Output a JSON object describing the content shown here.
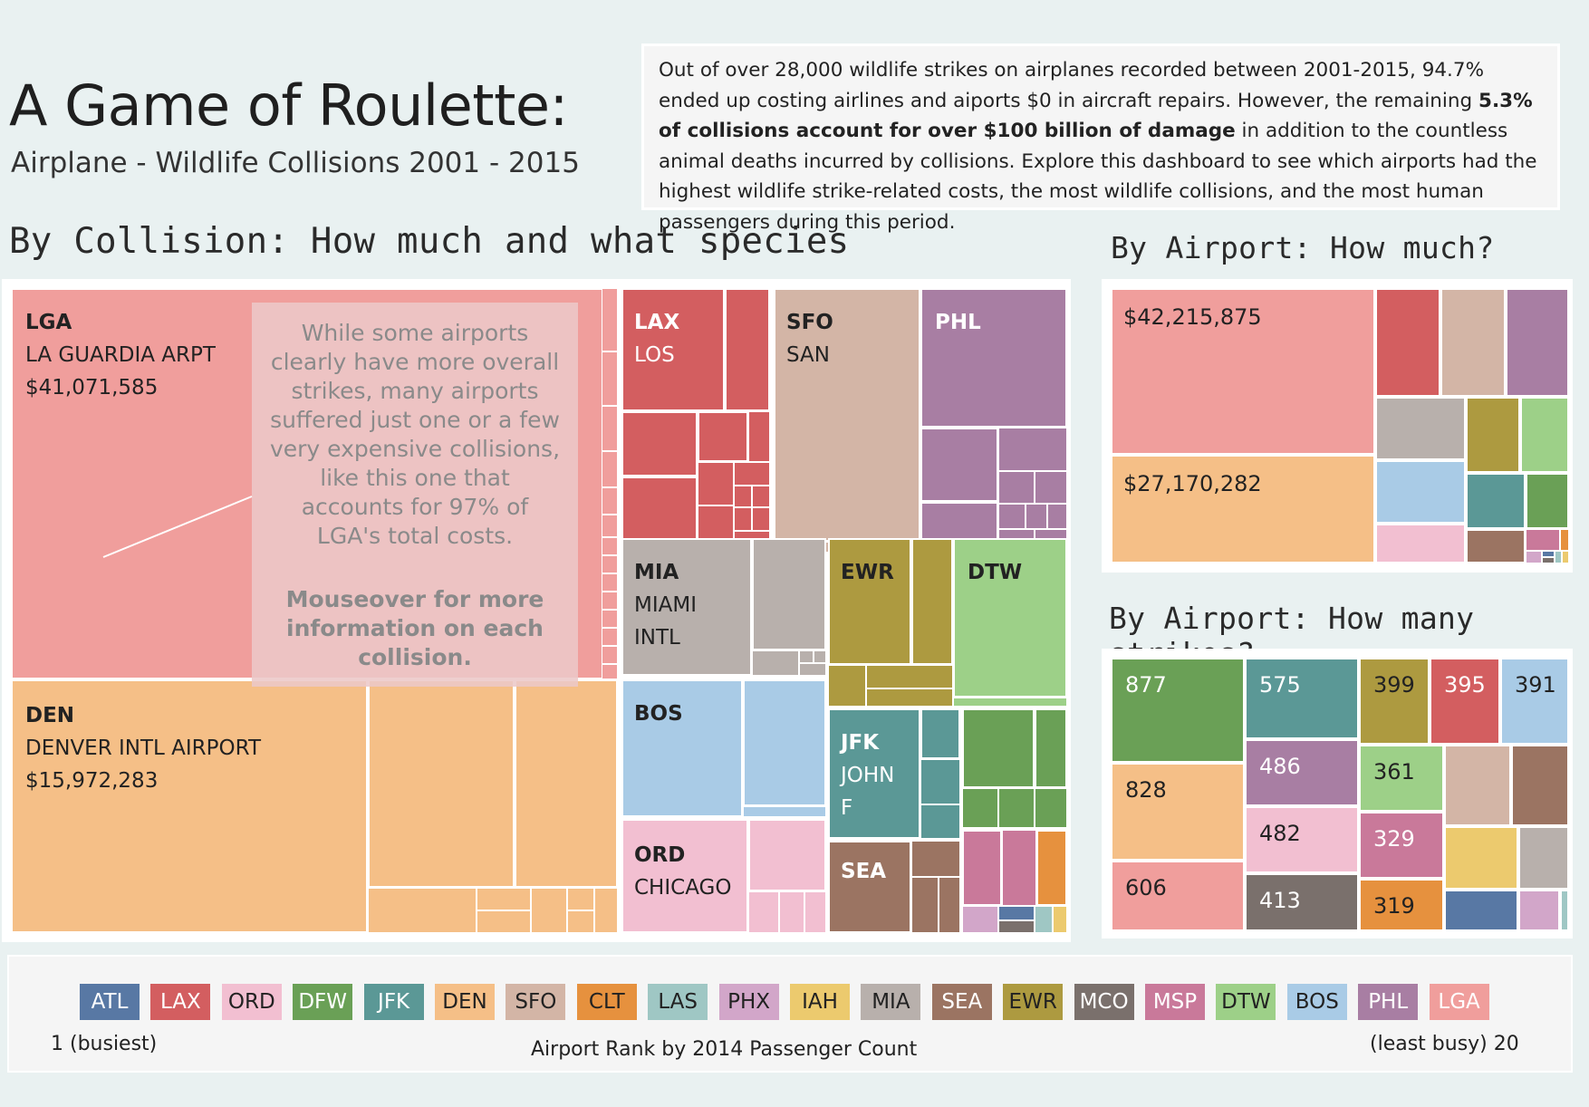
{
  "header": {
    "title": "A Game of Roulette:",
    "subtitle": "Airplane - Wildlife Collisions 2001 - 2015"
  },
  "intro": {
    "part1": "Out of over 28,000 wildlife strikes on airplanes recorded between 2001-2015, 94.7% ended up costing airlines and aiports $0 in aircraft repairs. However, the remaining ",
    "bold": "5.3% of collisions account for over $100 billion of damage",
    "part2": " in  addition to the countless animal deaths incurred by collisions. Explore this dashboard to see which airports had the highest wildlife strike-related costs, the most wildlife collisions, and the most human passengers during this period."
  },
  "sections": {
    "collision": "By Collision: How much and what species",
    "airport_cost": "By Airport: How much?",
    "airport_strikes": "By Airport: How many strikes?"
  },
  "callout": {
    "text": "While some airports clearly have more overall strikes, many airports suffered just one or a few very expensive collisions, like this one that accounts for 97% of LGA's total costs.",
    "bold": "Mouseover for more information on each collision."
  },
  "colors": {
    "ATL": "#5878a4",
    "LAX": "#d35e60",
    "ORD": "#f2bfd1",
    "DFW": "#6aa056",
    "JFK": "#5b9896",
    "DEN": "#f5bf87",
    "SFO": "#d3b5a6",
    "CLT": "#e6913e",
    "LAS": "#9fc7c4",
    "PHX": "#d2a6c9",
    "IAH": "#ecca6e",
    "MIA": "#b8b0ac",
    "SEA": "#9b7462",
    "EWR": "#ad9a40",
    "MCO": "#7a706c",
    "MSP": "#c9799a",
    "DTW": "#9dd088",
    "BOS": "#a9cbe6",
    "PHL": "#a87ea3",
    "LGA": "#f09e9c"
  },
  "chart_data": [
    {
      "type": "treemap",
      "title": "By Collision: How much and what species",
      "labels": [
        {
          "code": "LGA",
          "name": "LA GUARDIA ARPT",
          "value": "$41,071,585"
        },
        {
          "code": "DEN",
          "name": "DENVER INTL AIRPORT",
          "value": "$15,972,283"
        },
        {
          "code": "LAX",
          "name": "LOS"
        },
        {
          "code": "SFO",
          "name": "SAN"
        },
        {
          "code": "PHL",
          "name": ""
        },
        {
          "code": "MIA",
          "name": "MIAMI INTL"
        },
        {
          "code": "EWR",
          "name": ""
        },
        {
          "code": "DTW",
          "name": ""
        },
        {
          "code": "BOS",
          "name": ""
        },
        {
          "code": "JFK",
          "name": "JOHN F"
        },
        {
          "code": "ORD",
          "name": "CHICAGO"
        },
        {
          "code": "SEA",
          "name": ""
        }
      ],
      "mi_line1": "MIAMI",
      "mi_line2": "INTL",
      "jfk_line1": "JOHN",
      "jfk_line2": "F"
    },
    {
      "type": "treemap",
      "title": "By Airport: How much?",
      "airports": [
        "LGA",
        "DEN",
        "LAX",
        "SFO",
        "PHL",
        "MIA",
        "EWR",
        "DTW",
        "BOS",
        "JFK",
        "DFW",
        "ORD",
        "SEA",
        "MSP"
      ],
      "labeled_values": [
        {
          "airport": "LGA",
          "value": "$42,215,875"
        },
        {
          "airport": "DEN",
          "value": "$27,170,282"
        }
      ]
    },
    {
      "type": "treemap",
      "title": "By Airport: How many strikes?",
      "values": [
        {
          "airport": "DFW",
          "strikes": 877
        },
        {
          "airport": "DEN",
          "strikes": 828
        },
        {
          "airport": "LGA",
          "strikes": 606
        },
        {
          "airport": "JFK",
          "strikes": 575
        },
        {
          "airport": "PHL",
          "strikes": 486
        },
        {
          "airport": "ORD",
          "strikes": 482
        },
        {
          "airport": "MCO",
          "strikes": 413
        },
        {
          "airport": "EWR",
          "strikes": 399
        },
        {
          "airport": "LAX",
          "strikes": 395
        },
        {
          "airport": "BOS",
          "strikes": 391
        },
        {
          "airport": "DTW",
          "strikes": 361
        },
        {
          "airport": "MSP",
          "strikes": 329
        },
        {
          "airport": "CLT",
          "strikes": 319
        }
      ]
    }
  ],
  "legend": {
    "items": [
      "ATL",
      "LAX",
      "ORD",
      "DFW",
      "JFK",
      "DEN",
      "SFO",
      "CLT",
      "LAS",
      "PHX",
      "IAH",
      "MIA",
      "SEA",
      "EWR",
      "MCO",
      "MSP",
      "DTW",
      "BOS",
      "PHL",
      "LGA"
    ],
    "left_label": "1 (busiest)",
    "center_label": "Airport Rank by 2014 Passenger Count",
    "right_label": "(least busy) 20"
  }
}
